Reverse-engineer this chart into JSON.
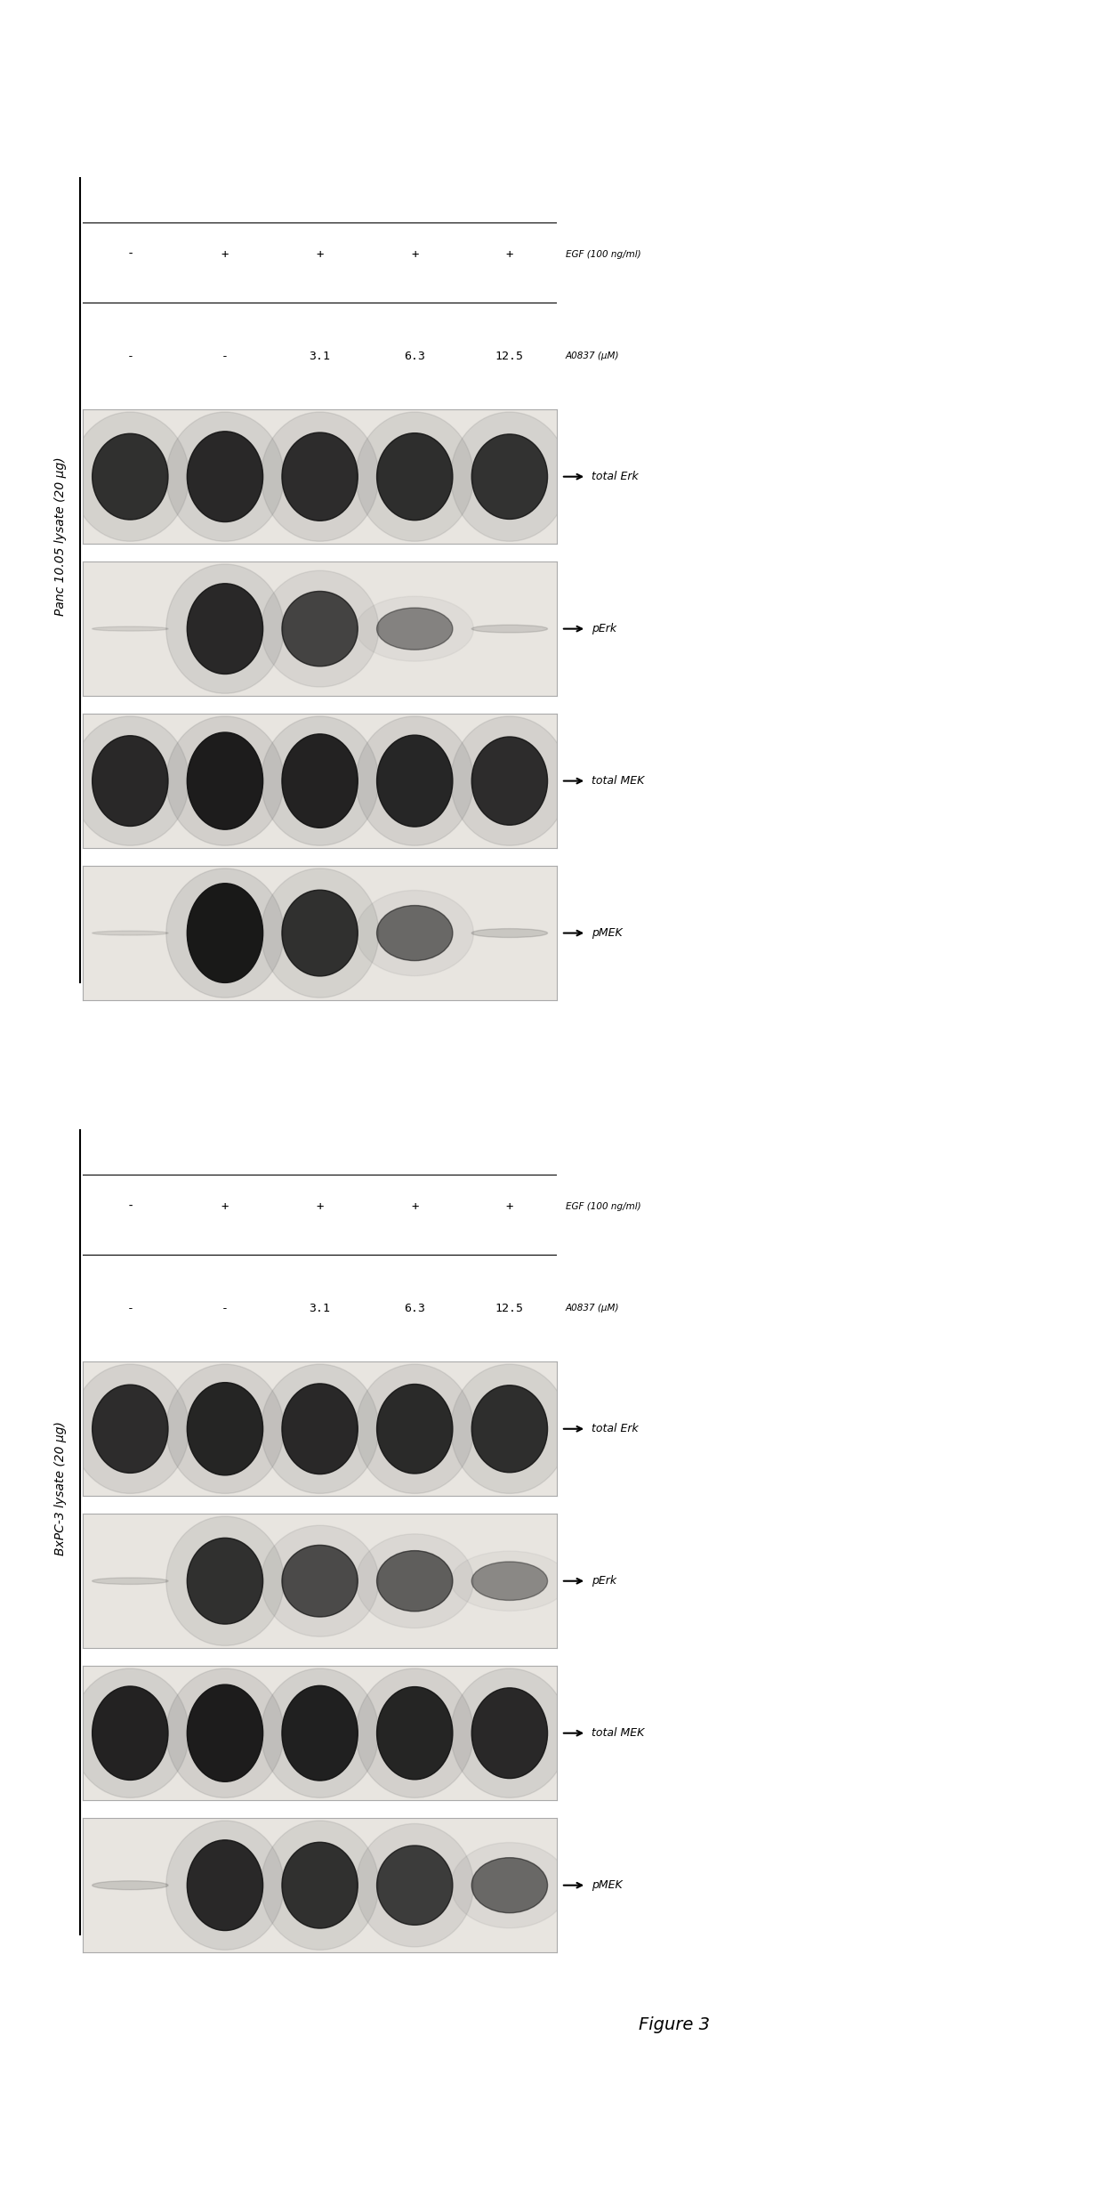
{
  "figure_title": "Figure 3",
  "panel1": {
    "title": "Panc 10.05 lysate (20 μg)",
    "egf_label": "EGF (100 ng/ml)",
    "drug_label": "A0837 (μM)",
    "lane_egf": [
      "-",
      "+",
      "+",
      "+",
      "+"
    ],
    "lane_drug": [
      "-",
      "-",
      "3.1",
      "6.3",
      "12.5"
    ],
    "blots": [
      {
        "label": "pMEK",
        "intensities": [
          0.04,
          0.9,
          0.78,
          0.5,
          0.08
        ]
      },
      {
        "label": "total MEK",
        "intensities": [
          0.82,
          0.88,
          0.85,
          0.83,
          0.8
        ]
      },
      {
        "label": "pErk",
        "intensities": [
          0.04,
          0.82,
          0.68,
          0.38,
          0.07
        ]
      },
      {
        "label": "total Erk",
        "intensities": [
          0.78,
          0.82,
          0.8,
          0.79,
          0.77
        ]
      }
    ]
  },
  "panel2": {
    "title": "BxPC-3 lysate (20 μg)",
    "egf_label": "EGF (100 ng/ml)",
    "drug_label": "A0837 (μM)",
    "lane_egf": [
      "-",
      "+",
      "+",
      "+",
      "+"
    ],
    "lane_drug": [
      "-",
      "-",
      "3.1",
      "6.3",
      "12.5"
    ],
    "blots": [
      {
        "label": "pMEK",
        "intensities": [
          0.08,
          0.82,
          0.78,
          0.72,
          0.5
        ]
      },
      {
        "label": "total MEK",
        "intensities": [
          0.85,
          0.88,
          0.86,
          0.84,
          0.82
        ]
      },
      {
        "label": "pErk",
        "intensities": [
          0.06,
          0.78,
          0.65,
          0.55,
          0.35
        ]
      },
      {
        "label": "total Erk",
        "intensities": [
          0.8,
          0.84,
          0.82,
          0.81,
          0.79
        ]
      }
    ]
  },
  "bg_blot": "#e8e5e0",
  "band_dark": "#111111",
  "border_color": "#aaaaaa",
  "page_bg": "#ffffff"
}
